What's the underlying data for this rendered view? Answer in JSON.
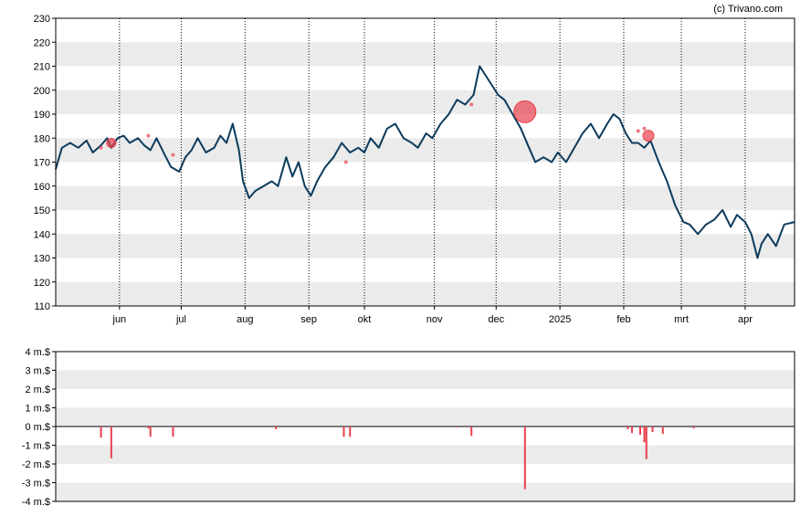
{
  "copyright": "(c) Trivano.com",
  "colors": {
    "band": "#ebebeb",
    "price_line": "#0d3b5c",
    "marker": "#e8414f",
    "volume_bar": "#e8414f",
    "axis": "#000000"
  },
  "chart_data": [
    {
      "type": "line",
      "name": "price",
      "ylim": [
        110,
        230
      ],
      "yticks": [
        110,
        120,
        130,
        140,
        150,
        160,
        170,
        180,
        190,
        200,
        210,
        220,
        230
      ],
      "ytick_labels": [
        "110",
        "120",
        "130",
        "140",
        "150",
        "160",
        "170",
        "180",
        "190",
        "200",
        "210",
        "220",
        "230"
      ],
      "xlim": [
        "2024-05-01",
        "2025-04-25"
      ],
      "grid": "horizontal bands + dotted vertical month lines",
      "month_ticks": [
        {
          "date": "2024-06-01",
          "label": "jun"
        },
        {
          "date": "2024-07-01",
          "label": "jul"
        },
        {
          "date": "2024-08-01",
          "label": "aug"
        },
        {
          "date": "2024-09-01",
          "label": "sep"
        },
        {
          "date": "2024-09-28",
          "label": "okt"
        },
        {
          "date": "2024-11-01",
          "label": "nov"
        },
        {
          "date": "2024-12-01",
          "label": "dec"
        },
        {
          "date": "2025-01-01",
          "label": "2025"
        },
        {
          "date": "2025-02-01",
          "label": "feb"
        },
        {
          "date": "2025-03-01",
          "label": "mrt"
        },
        {
          "date": "2025-04-01",
          "label": "apr"
        }
      ],
      "series": [
        {
          "x": [
            "2024-05-01",
            "2024-05-04",
            "2024-05-08",
            "2024-05-12",
            "2024-05-16",
            "2024-05-19",
            "2024-05-23",
            "2024-05-26",
            "2024-05-28",
            "2024-05-31",
            "2024-06-03",
            "2024-06-06",
            "2024-06-10",
            "2024-06-13",
            "2024-06-16",
            "2024-06-19",
            "2024-06-23",
            "2024-06-26",
            "2024-06-30",
            "2024-07-03",
            "2024-07-06",
            "2024-07-09",
            "2024-07-13",
            "2024-07-17",
            "2024-07-20",
            "2024-07-23",
            "2024-07-26",
            "2024-07-29",
            "2024-07-31",
            "2024-08-03",
            "2024-08-06",
            "2024-08-10",
            "2024-08-14",
            "2024-08-17",
            "2024-08-21",
            "2024-08-24",
            "2024-08-27",
            "2024-08-30",
            "2024-09-02",
            "2024-09-05",
            "2024-09-09",
            "2024-09-13",
            "2024-09-17",
            "2024-09-21",
            "2024-09-25",
            "2024-09-28",
            "2024-10-01",
            "2024-10-05",
            "2024-10-09",
            "2024-10-13",
            "2024-10-17",
            "2024-10-21",
            "2024-10-24",
            "2024-10-28",
            "2024-10-31",
            "2024-11-04",
            "2024-11-08",
            "2024-11-12",
            "2024-11-16",
            "2024-11-20",
            "2024-11-23",
            "2024-11-26",
            "2024-11-29",
            "2024-12-02",
            "2024-12-05",
            "2024-12-09",
            "2024-12-13",
            "2024-12-17",
            "2024-12-20",
            "2024-12-24",
            "2024-12-28",
            "2024-12-31",
            "2025-01-04",
            "2025-01-08",
            "2025-01-12",
            "2025-01-16",
            "2025-01-20",
            "2025-01-24",
            "2025-01-27",
            "2025-01-30",
            "2025-02-02",
            "2025-02-05",
            "2025-02-08",
            "2025-02-11",
            "2025-02-14",
            "2025-02-18",
            "2025-02-22",
            "2025-02-26",
            "2025-03-02",
            "2025-03-05",
            "2025-03-09",
            "2025-03-13",
            "2025-03-17",
            "2025-03-21",
            "2025-03-25",
            "2025-03-28",
            "2025-04-01",
            "2025-04-04",
            "2025-04-07",
            "2025-04-09",
            "2025-04-12",
            "2025-04-16",
            "2025-04-20",
            "2025-04-25"
          ],
          "values": [
            167,
            176,
            178,
            176,
            179,
            174,
            177,
            180,
            176,
            180,
            181,
            178,
            180,
            177,
            175,
            180,
            173,
            168,
            166,
            172,
            175,
            180,
            174,
            176,
            181,
            178,
            186,
            175,
            162,
            155,
            158,
            160,
            162,
            160,
            172,
            164,
            170,
            160,
            156,
            162,
            168,
            172,
            178,
            174,
            176,
            174,
            180,
            176,
            184,
            186,
            180,
            178,
            176,
            182,
            180,
            186,
            190,
            196,
            194,
            198,
            210,
            206,
            202,
            198,
            196,
            190,
            184,
            176,
            170,
            172,
            170,
            174,
            170,
            176,
            182,
            186,
            180,
            186,
            190,
            188,
            182,
            178,
            178,
            176,
            179,
            170,
            162,
            152,
            145,
            144,
            140,
            144,
            146,
            150,
            143,
            148,
            145,
            140,
            130,
            136,
            140,
            135,
            144,
            145
          ]
        }
      ],
      "markers": [
        {
          "date": "2024-05-23",
          "value": 176,
          "size": 2
        },
        {
          "date": "2024-05-28",
          "value": 178,
          "size": 5
        },
        {
          "date": "2024-06-15",
          "value": 181,
          "size": 2
        },
        {
          "date": "2024-06-27",
          "value": 173,
          "size": 2
        },
        {
          "date": "2024-09-19",
          "value": 170,
          "size": 2
        },
        {
          "date": "2024-11-19",
          "value": 194,
          "size": 2
        },
        {
          "date": "2024-12-15",
          "value": 191,
          "size": 12
        },
        {
          "date": "2025-02-08",
          "value": 183,
          "size": 2
        },
        {
          "date": "2025-02-11",
          "value": 184,
          "size": 2
        },
        {
          "date": "2025-02-13",
          "value": 181,
          "size": 6
        }
      ]
    },
    {
      "type": "bar",
      "name": "volume",
      "ylim": [
        -4,
        4
      ],
      "yticks": [
        4,
        3,
        2,
        1,
        0,
        -1,
        -2,
        -3,
        -4
      ],
      "ytick_labels": [
        "4 m.$",
        "3 m.$",
        "2 m.$",
        "1 m.$",
        "0 m.$",
        "-1 m.$",
        "-2 m.$",
        "-3 m.$",
        "-4 m.$"
      ],
      "x": [
        "2024-05-23",
        "2024-05-28",
        "2024-06-15",
        "2024-06-16",
        "2024-06-27",
        "2024-08-16",
        "2024-09-18",
        "2024-09-21",
        "2024-11-12",
        "2024-11-19",
        "2024-12-15",
        "2025-02-03",
        "2025-02-05",
        "2025-02-09",
        "2025-02-11",
        "2025-02-12",
        "2025-02-15",
        "2025-02-20",
        "2025-03-07"
      ],
      "values": [
        -0.6,
        -1.7,
        -0.1,
        -0.55,
        -0.55,
        -0.15,
        -0.55,
        -0.55,
        -0.05,
        -0.5,
        -3.35,
        -0.15,
        -0.35,
        -0.45,
        -0.85,
        -1.75,
        -0.3,
        -0.4,
        -0.1
      ]
    }
  ]
}
